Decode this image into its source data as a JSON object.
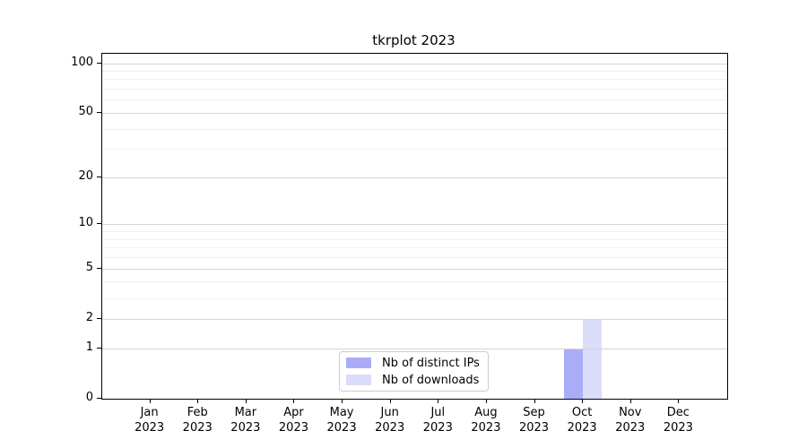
{
  "chart_data": {
    "type": "bar",
    "title": "tkrplot 2023",
    "categories": [
      "Jan",
      "Feb",
      "Mar",
      "Apr",
      "May",
      "Jun",
      "Jul",
      "Aug",
      "Sep",
      "Oct",
      "Nov",
      "Dec"
    ],
    "year": "2023",
    "series": [
      {
        "name": "Nb of distinct IPs",
        "color": "#abacf7",
        "values": [
          0,
          0,
          0,
          0,
          0,
          0,
          0,
          0,
          0,
          1,
          0,
          0
        ]
      },
      {
        "name": "Nb of downloads",
        "color": "#dbdcf9",
        "values": [
          0,
          0,
          0,
          0,
          0,
          0,
          0,
          0,
          0,
          2,
          0,
          0
        ]
      }
    ],
    "y_scale": "log1p",
    "ylim": [
      0,
      114
    ],
    "y_major_ticks": [
      0,
      1,
      2,
      5,
      10,
      20,
      50,
      100
    ],
    "y_minor_ticks": [
      3,
      4,
      6,
      7,
      8,
      9,
      30,
      40,
      60,
      70,
      80,
      90
    ],
    "grid": true,
    "legend_position": "bottom-center",
    "colors": {
      "grid_major": "#d4d4d4",
      "grid_minor": "#efefef",
      "spine": "#000000",
      "text": "#000000",
      "background": "#ffffff"
    }
  }
}
